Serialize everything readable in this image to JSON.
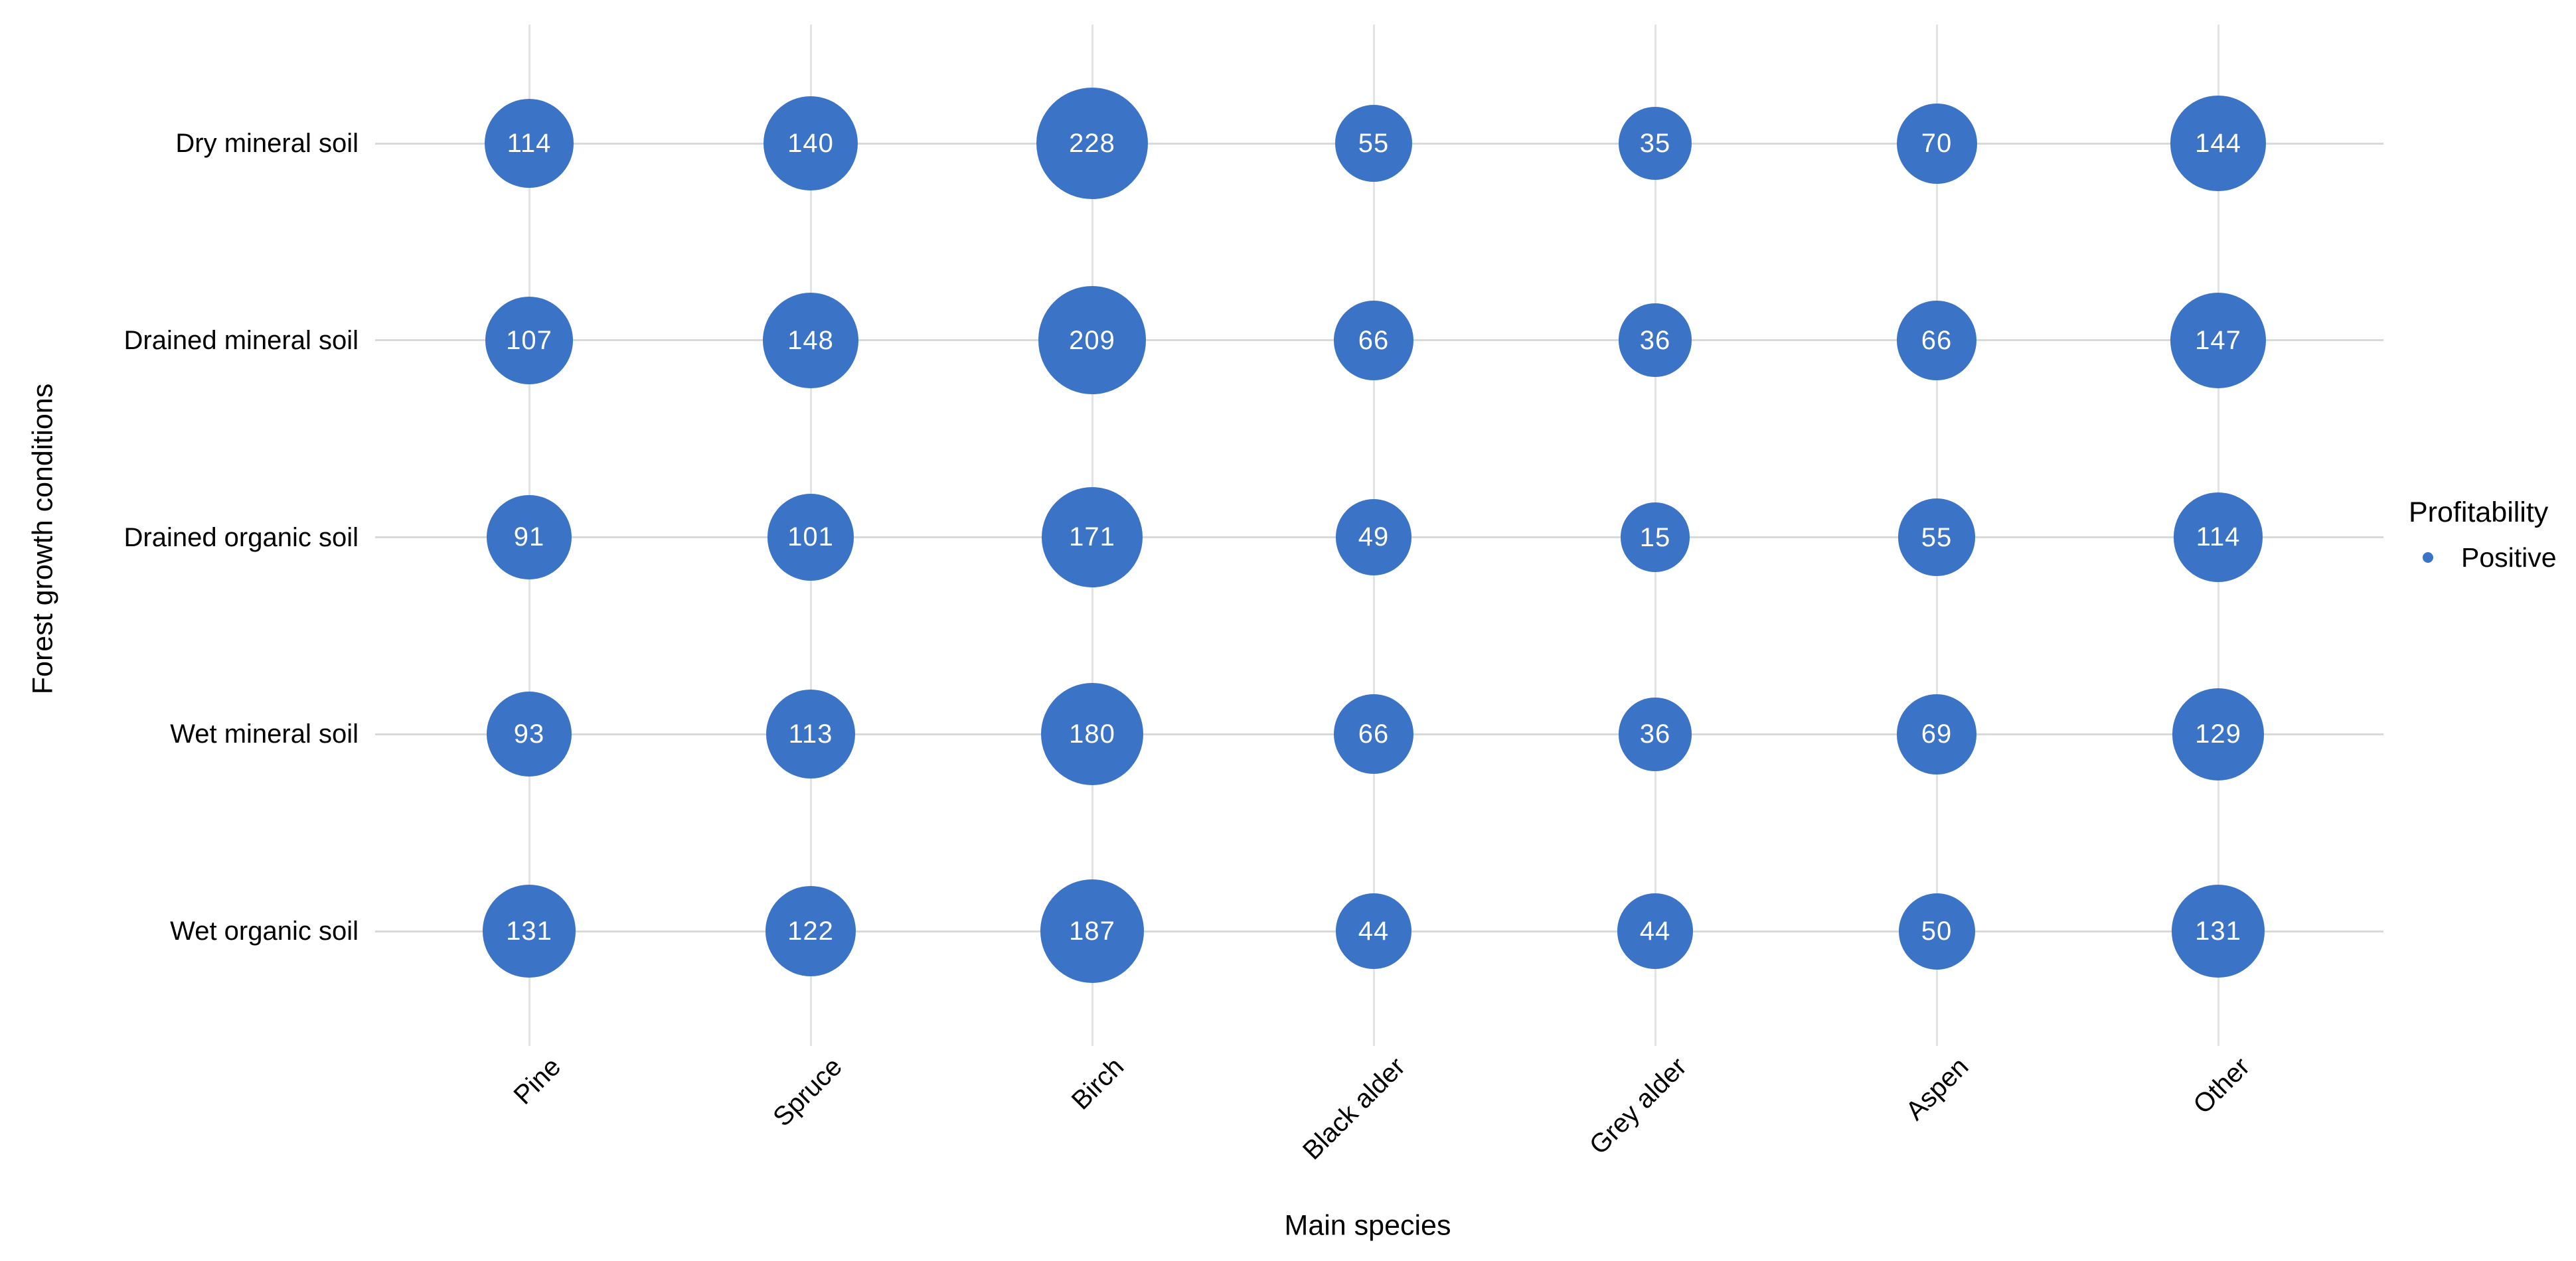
{
  "chart_data": {
    "type": "scatter",
    "variant": "bubble-matrix",
    "title": "",
    "xlabel": "Main species",
    "ylabel": "Forest growth conditions",
    "x_categories": [
      "Pine",
      "Spruce",
      "Birch",
      "Black alder",
      "Grey alder",
      "Aspen",
      "Other"
    ],
    "y_categories": [
      "Dry mineral soil",
      "Drained mineral soil",
      "Drained organic soil",
      "Wet mineral soil",
      "Wet organic soil"
    ],
    "series": [
      {
        "name": "Dry mineral soil",
        "values": [
          114,
          140,
          228,
          55,
          35,
          70,
          144
        ]
      },
      {
        "name": "Drained mineral soil",
        "values": [
          107,
          148,
          209,
          66,
          36,
          66,
          147
        ]
      },
      {
        "name": "Drained organic soil",
        "values": [
          91,
          101,
          171,
          49,
          15,
          55,
          114
        ]
      },
      {
        "name": "Wet mineral soil",
        "values": [
          93,
          113,
          180,
          66,
          36,
          69,
          129
        ]
      },
      {
        "name": "Wet organic soil",
        "values": [
          131,
          122,
          187,
          44,
          44,
          50,
          131
        ]
      }
    ],
    "legend": {
      "title": "Profitability",
      "position": "right-middle",
      "items": [
        {
          "label": "Positive",
          "color": "#3b73c6"
        }
      ]
    },
    "colors": {
      "bubble": "#3b73c6",
      "bubble_label": "#ffffff",
      "grid_horizontal": "#d9d9d9",
      "grid_vertical": "#e3e3e3",
      "text": "#000000"
    },
    "grid": true,
    "value_range": [
      15,
      228
    ]
  }
}
